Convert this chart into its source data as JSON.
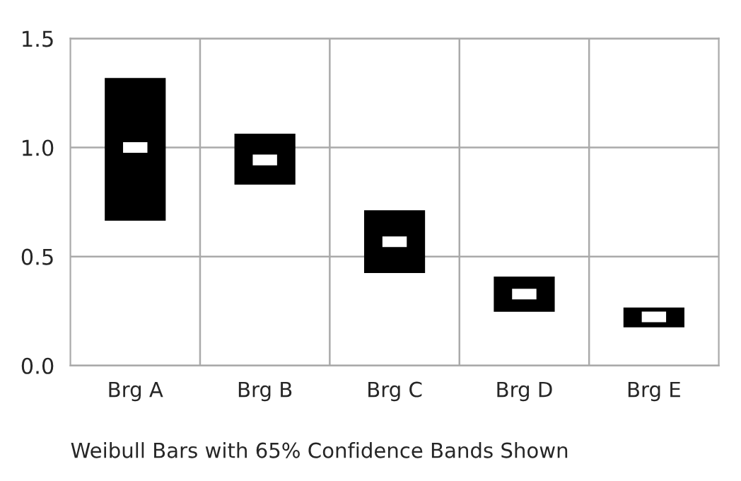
{
  "chart_data": {
    "type": "bar",
    "categories": [
      "Brg A",
      "Brg B",
      "Brg C",
      "Brg D",
      "Brg E"
    ],
    "base": [
      0.664,
      0.83,
      0.424,
      0.247,
      0.175
    ],
    "values": [
      0.655,
      0.233,
      0.288,
      0.161,
      0.091
    ],
    "color": "#000000",
    "series": [
      {
        "type": "scatter",
        "x": [
          "Brg A",
          "Brg B",
          "Brg C",
          "Brg D",
          "Brg E"
        ],
        "values": [
          1.0,
          0.943,
          0.568,
          0.328,
          0.223
        ],
        "color": "#ffffff",
        "marker": "square"
      }
    ],
    "ylim": [
      0,
      1.5
    ],
    "yticks": [
      {
        "value": 0,
        "label": "0.0"
      },
      {
        "value": 0.5,
        "label": "0.5"
      },
      {
        "value": 1,
        "label": "1.0"
      },
      {
        "value": 1.5,
        "label": "1.5"
      }
    ],
    "grid": true,
    "annotations": [
      "Weibull Bars with 65% Confidence Bands Shown"
    ]
  }
}
